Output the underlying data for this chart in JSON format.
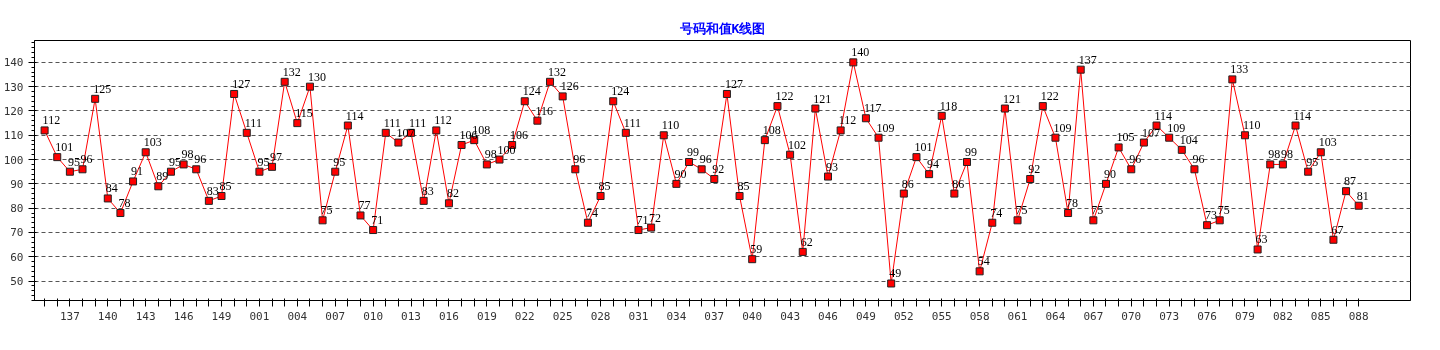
{
  "chart_data": {
    "type": "line",
    "title": "号码和值K线图",
    "categories": [
      null,
      null,
      "137",
      null,
      null,
      "140",
      null,
      null,
      "143",
      null,
      null,
      "146",
      null,
      null,
      "149",
      null,
      null,
      "001",
      null,
      null,
      "004",
      null,
      null,
      "007",
      null,
      null,
      "010",
      null,
      null,
      "013",
      null,
      null,
      "016",
      null,
      null,
      "019",
      null,
      null,
      "022",
      null,
      null,
      "025",
      null,
      null,
      "028",
      null,
      null,
      "031",
      null,
      null,
      "034",
      null,
      null,
      "037",
      null,
      null,
      "040",
      null,
      null,
      "043",
      null,
      null,
      "046",
      null,
      null,
      "049",
      null,
      null,
      "052",
      null,
      null,
      "055",
      null,
      null,
      "058",
      null,
      null,
      "061",
      null,
      null,
      "064",
      null,
      null,
      "067",
      null,
      null,
      "070",
      null,
      null,
      "073",
      null,
      null,
      "076",
      null,
      null,
      "079",
      null,
      null,
      "082",
      null,
      null,
      "085",
      null,
      null,
      "088"
    ],
    "series": [
      {
        "color": "#ff0000",
        "values": [
          112,
          101,
          95,
          96,
          125,
          84,
          78,
          91,
          103,
          89,
          95,
          98,
          96,
          83,
          85,
          127,
          111,
          95,
          97,
          132,
          115,
          130,
          75,
          95,
          114,
          77,
          71,
          111,
          107,
          111,
          83,
          112,
          82,
          106,
          108,
          98,
          100,
          106,
          124,
          116,
          132,
          126,
          96,
          74,
          85,
          124,
          111,
          71,
          72,
          110,
          90,
          99,
          96,
          92,
          127,
          85,
          59,
          108,
          122,
          102,
          62,
          121,
          93,
          112,
          140,
          117,
          109,
          49,
          86,
          101,
          94,
          118,
          86,
          99,
          54,
          74,
          121,
          75,
          92,
          122,
          109,
          78,
          137,
          75,
          90,
          105,
          96,
          107,
          114,
          109,
          104,
          96,
          73,
          75,
          133,
          110,
          63,
          98,
          98,
          114,
          95,
          103,
          67,
          87,
          81
        ]
      }
    ],
    "ylim": [
      42,
      149
    ],
    "yticks": [
      50,
      60,
      70,
      80,
      90,
      100,
      110,
      120,
      130,
      140
    ],
    "grid": "y",
    "marker": "square",
    "line_style": "solid",
    "data_labels": true
  }
}
